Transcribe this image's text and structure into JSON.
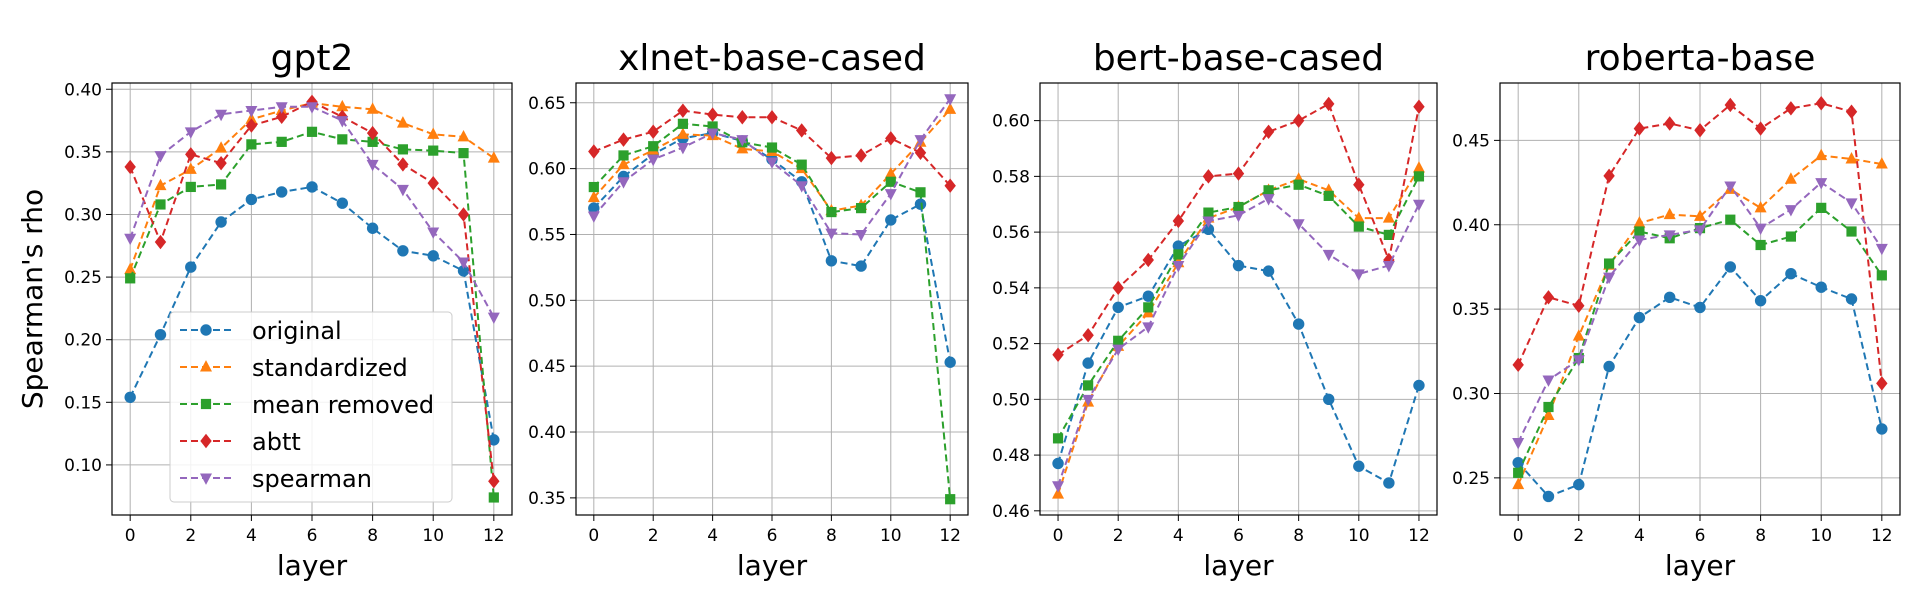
{
  "chart_data": [
    {
      "type": "line",
      "title": "gpt2",
      "xlabel": "layer",
      "ylabel": "Spearman's rho",
      "x": [
        0,
        1,
        2,
        3,
        4,
        5,
        6,
        7,
        8,
        9,
        10,
        11,
        12
      ],
      "xticks": [
        0,
        2,
        4,
        6,
        8,
        10,
        12
      ],
      "ylim": [
        0.06,
        0.405
      ],
      "yticks": [
        0.1,
        0.15,
        0.2,
        0.25,
        0.3,
        0.35,
        0.4
      ],
      "ytick_labels": [
        "0.10",
        "0.15",
        "0.20",
        "0.25",
        "0.30",
        "0.35",
        "0.40"
      ],
      "grid": true,
      "legend": "bottom-left",
      "series": [
        {
          "name": "original",
          "color": "#1f77b4",
          "marker": "circle",
          "values": [
            0.154,
            0.204,
            0.258,
            0.294,
            0.312,
            0.318,
            0.322,
            0.309,
            0.289,
            0.271,
            0.267,
            0.255,
            0.12
          ]
        },
        {
          "name": "standardized",
          "color": "#ff7f0e",
          "marker": "triangle-up",
          "values": [
            0.256,
            0.323,
            0.336,
            0.353,
            0.376,
            0.383,
            0.389,
            0.386,
            0.384,
            0.373,
            0.364,
            0.362,
            0.345
          ]
        },
        {
          "name": "mean removed",
          "color": "#2ca02c",
          "marker": "square",
          "values": [
            0.249,
            0.308,
            0.322,
            0.324,
            0.356,
            0.358,
            0.366,
            0.36,
            0.358,
            0.352,
            0.351,
            0.349,
            0.074
          ]
        },
        {
          "name": "abtt",
          "color": "#d62728",
          "marker": "diamond",
          "values": [
            0.338,
            0.278,
            0.348,
            0.341,
            0.371,
            0.378,
            0.39,
            0.378,
            0.365,
            0.34,
            0.325,
            0.3,
            0.087
          ]
        },
        {
          "name": "spearman",
          "color": "#9467bd",
          "marker": "triangle-down",
          "values": [
            0.281,
            0.347,
            0.366,
            0.38,
            0.383,
            0.386,
            0.386,
            0.375,
            0.34,
            0.32,
            0.286,
            0.262,
            0.218
          ]
        }
      ]
    },
    {
      "type": "line",
      "title": "xlnet-base-cased",
      "xlabel": "layer",
      "ylabel": "",
      "x": [
        0,
        1,
        2,
        3,
        4,
        5,
        6,
        7,
        8,
        9,
        10,
        11,
        12
      ],
      "xticks": [
        0,
        2,
        4,
        6,
        8,
        10,
        12
      ],
      "ylim": [
        0.337,
        0.665
      ],
      "yticks": [
        0.35,
        0.4,
        0.45,
        0.5,
        0.55,
        0.6,
        0.65
      ],
      "ytick_labels": [
        "0.35",
        "0.40",
        "0.45",
        "0.50",
        "0.55",
        "0.60",
        "0.65"
      ],
      "grid": true,
      "series": [
        {
          "name": "original",
          "color": "#1f77b4",
          "marker": "circle",
          "values": [
            0.57,
            0.594,
            0.611,
            0.623,
            0.627,
            0.621,
            0.607,
            0.59,
            0.53,
            0.526,
            0.561,
            0.573,
            0.453
          ]
        },
        {
          "name": "standardized",
          "color": "#ff7f0e",
          "marker": "triangle-up",
          "values": [
            0.578,
            0.603,
            0.614,
            0.626,
            0.625,
            0.615,
            0.613,
            0.6,
            0.568,
            0.572,
            0.596,
            0.62,
            0.645
          ]
        },
        {
          "name": "mean removed",
          "color": "#2ca02c",
          "marker": "square",
          "values": [
            0.586,
            0.61,
            0.617,
            0.634,
            0.632,
            0.62,
            0.616,
            0.603,
            0.567,
            0.57,
            0.59,
            0.582,
            0.349
          ]
        },
        {
          "name": "abtt",
          "color": "#d62728",
          "marker": "diamond",
          "values": [
            0.613,
            0.622,
            0.628,
            0.644,
            0.641,
            0.639,
            0.639,
            0.629,
            0.608,
            0.61,
            0.623,
            0.612,
            0.587
          ]
        },
        {
          "name": "spearman",
          "color": "#9467bd",
          "marker": "triangle-down",
          "values": [
            0.564,
            0.59,
            0.607,
            0.616,
            0.627,
            0.622,
            0.605,
            0.587,
            0.551,
            0.55,
            0.581,
            0.622,
            0.653
          ]
        }
      ]
    },
    {
      "type": "line",
      "title": "bert-base-cased",
      "xlabel": "layer",
      "ylabel": "",
      "x": [
        0,
        1,
        2,
        3,
        4,
        5,
        6,
        7,
        8,
        9,
        10,
        11,
        12
      ],
      "xticks": [
        0,
        2,
        4,
        6,
        8,
        10,
        12
      ],
      "ylim": [
        0.4585,
        0.6135
      ],
      "yticks": [
        0.46,
        0.48,
        0.5,
        0.52,
        0.54,
        0.56,
        0.58,
        0.6
      ],
      "ytick_labels": [
        "0.46",
        "0.48",
        "0.50",
        "0.52",
        "0.54",
        "0.56",
        "0.58",
        "0.60"
      ],
      "grid": true,
      "series": [
        {
          "name": "original",
          "color": "#1f77b4",
          "marker": "circle",
          "values": [
            0.477,
            0.513,
            0.533,
            0.537,
            0.555,
            0.561,
            0.548,
            0.546,
            0.527,
            0.5,
            0.476,
            0.47,
            0.505
          ]
        },
        {
          "name": "standardized",
          "color": "#ff7f0e",
          "marker": "triangle-up",
          "values": [
            0.466,
            0.499,
            0.519,
            0.531,
            0.549,
            0.565,
            0.569,
            0.575,
            0.579,
            0.575,
            0.565,
            0.565,
            0.583
          ]
        },
        {
          "name": "mean removed",
          "color": "#2ca02c",
          "marker": "square",
          "values": [
            0.486,
            0.505,
            0.521,
            0.533,
            0.552,
            0.567,
            0.569,
            0.575,
            0.577,
            0.573,
            0.562,
            0.559,
            0.58
          ]
        },
        {
          "name": "abtt",
          "color": "#d62728",
          "marker": "diamond",
          "values": [
            0.516,
            0.523,
            0.54,
            0.55,
            0.564,
            0.58,
            0.581,
            0.596,
            0.6,
            0.606,
            0.577,
            0.55,
            0.605
          ]
        },
        {
          "name": "spearman",
          "color": "#9467bd",
          "marker": "triangle-down",
          "values": [
            0.469,
            0.5,
            0.518,
            0.526,
            0.548,
            0.564,
            0.566,
            0.572,
            0.563,
            0.552,
            0.545,
            0.548,
            0.57
          ]
        }
      ]
    },
    {
      "type": "line",
      "title": "roberta-base",
      "xlabel": "layer",
      "ylabel": "",
      "x": [
        0,
        1,
        2,
        3,
        4,
        5,
        6,
        7,
        8,
        9,
        10,
        11,
        12
      ],
      "xticks": [
        0,
        2,
        4,
        6,
        8,
        10,
        12
      ],
      "ylim": [
        0.228,
        0.484
      ],
      "yticks": [
        0.25,
        0.3,
        0.35,
        0.4,
        0.45
      ],
      "ytick_labels": [
        "0.25",
        "0.30",
        "0.35",
        "0.40",
        "0.45"
      ],
      "grid": true,
      "series": [
        {
          "name": "original",
          "color": "#1f77b4",
          "marker": "circle",
          "values": [
            0.259,
            0.239,
            0.246,
            0.316,
            0.345,
            0.357,
            0.351,
            0.375,
            0.355,
            0.371,
            0.363,
            0.356,
            0.279
          ]
        },
        {
          "name": "standardized",
          "color": "#ff7f0e",
          "marker": "triangle-up",
          "values": [
            0.246,
            0.287,
            0.334,
            0.376,
            0.401,
            0.406,
            0.405,
            0.421,
            0.41,
            0.427,
            0.441,
            0.439,
            0.436
          ]
        },
        {
          "name": "mean removed",
          "color": "#2ca02c",
          "marker": "square",
          "values": [
            0.253,
            0.292,
            0.321,
            0.377,
            0.396,
            0.392,
            0.398,
            0.403,
            0.388,
            0.393,
            0.41,
            0.396,
            0.37
          ]
        },
        {
          "name": "abtt",
          "color": "#d62728",
          "marker": "diamond",
          "values": [
            0.317,
            0.357,
            0.352,
            0.429,
            0.457,
            0.46,
            0.456,
            0.471,
            0.457,
            0.469,
            0.472,
            0.467,
            0.306
          ]
        },
        {
          "name": "spearman",
          "color": "#9467bd",
          "marker": "triangle-down",
          "values": [
            0.271,
            0.308,
            0.32,
            0.369,
            0.391,
            0.394,
            0.397,
            0.423,
            0.398,
            0.409,
            0.425,
            0.413,
            0.386
          ]
        }
      ]
    }
  ]
}
